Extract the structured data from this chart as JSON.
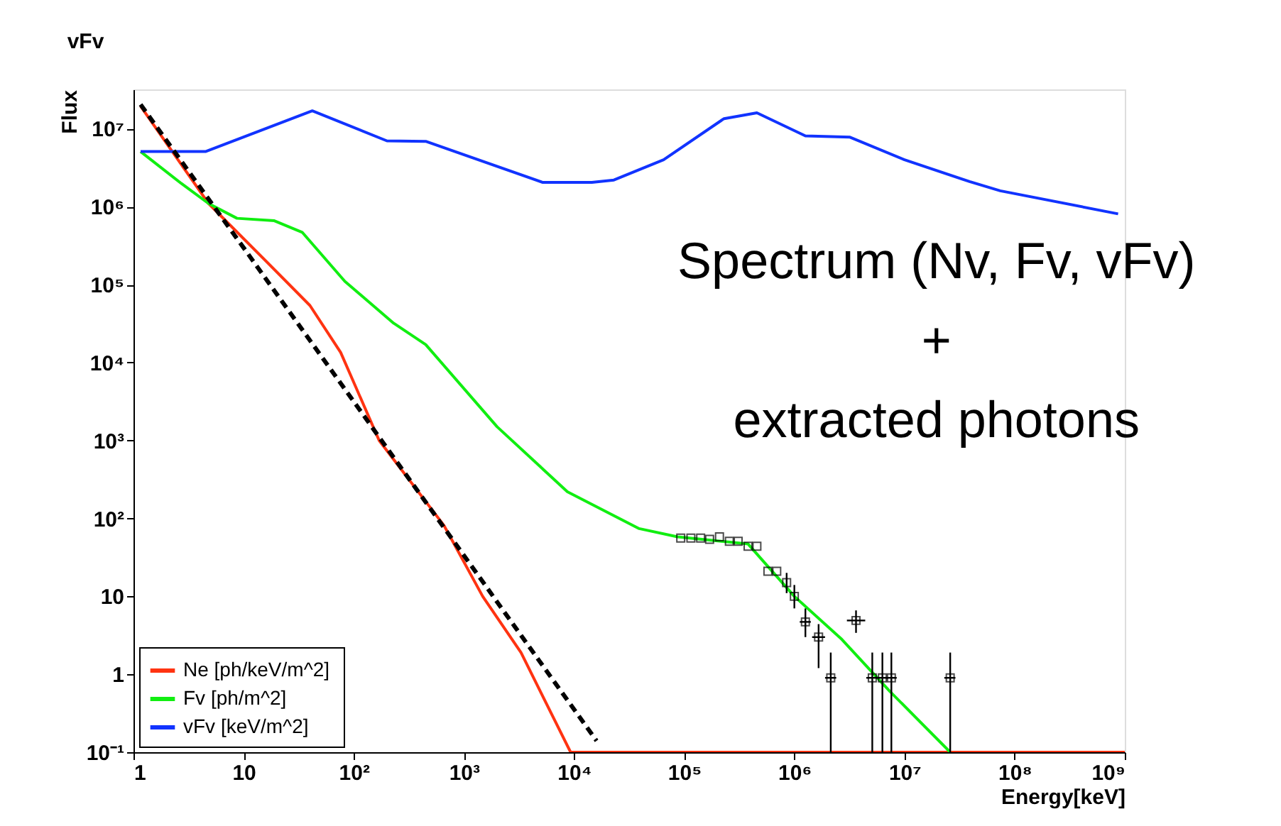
{
  "chart_data": {
    "type": "line",
    "title": "vFv",
    "xlabel": "Energy[keV]",
    "ylabel": "Flux",
    "log": "xy",
    "xlim": [
      1,
      1000000000
    ],
    "ylim": [
      0.1,
      32000000
    ],
    "xticks": [
      1,
      10,
      {
        "value": 100,
        "label": "10²"
      },
      {
        "value": 1000,
        "label": "10³"
      },
      {
        "value": 10000,
        "label": "10⁴"
      },
      {
        "value": 100000,
        "label": "10⁵"
      },
      {
        "value": 1000000,
        "label": "10⁶"
      },
      {
        "value": 10000000,
        "label": "10⁷"
      },
      {
        "value": 100000000,
        "label": "10⁸"
      },
      {
        "value": 1000000000,
        "label": "10⁹"
      }
    ],
    "yticks": [
      {
        "value": 0.1,
        "label": "10⁻¹"
      },
      1,
      10,
      {
        "value": 100,
        "label": "10²"
      },
      {
        "value": 1000,
        "label": "10³"
      },
      {
        "value": 10000,
        "label": "10⁴"
      },
      {
        "value": 100000,
        "label": "10⁵"
      },
      {
        "value": 1000000,
        "label": "10⁶"
      },
      {
        "value": 10000000,
        "label": "10⁷"
      }
    ],
    "grid": false,
    "legend": "bottom left",
    "annotations": [
      "Spectrum (Nv, Fv, vFv)\n+\nextracted photons"
    ],
    "series": [
      {
        "name": "Ne  [ph/keV/m^2]",
        "color": "#ff3311",
        "line_style": "solid",
        "x": [
          1.16,
          4.8,
          16,
          40,
          76,
          170,
          660,
          1480,
          3300,
          9300,
          1000000000
        ],
        "values": [
          19500000,
          1100000,
          200000,
          54000,
          13500,
          1000,
          81,
          10,
          1.9,
          0.1,
          0.1
        ]
      },
      {
        "name": "Fv  [ph/m^2]",
        "color": "#11ee11",
        "line_style": "solid",
        "x": [
          1.16,
          2.7,
          4.8,
          8.7,
          19,
          34,
          83,
          230,
          450,
          2000,
          8700,
          39000,
          87000,
          380000,
          1000000,
          2700000,
          7400000,
          26000000
        ],
        "values": [
          5100000,
          2000000,
          1100000,
          710000,
          660000,
          470000,
          110000,
          32000,
          17000,
          1500,
          220,
          74,
          58,
          47,
          10,
          2.8,
          0.6,
          0.1
        ]
      },
      {
        "name": "vFv [keV/m^2]",
        "color": "#1133ff",
        "line_style": "solid",
        "x": [
          1.16,
          4.5,
          42,
          200,
          450,
          5200,
          14500,
          23000,
          65000,
          230000,
          457000,
          1260000,
          3200000,
          10000000,
          39000000,
          74000000,
          870000000
        ],
        "values": [
          5100000,
          5100000,
          17000000,
          7000000,
          6900000,
          2050000,
          2050000,
          2200000,
          4000000,
          13500000,
          16000000,
          8100000,
          7800000,
          4000000,
          2100000,
          1600000,
          810000
        ]
      },
      {
        "color": "#000000",
        "line_style": "dashed",
        "x": [
          1.16,
          10.5,
          16000
        ],
        "values": [
          20500000,
          270000,
          0.14
        ]
      },
      {
        "type": "scatter",
        "marker": "square",
        "color": "#000000",
        "x": [
          93000,
          115000,
          141000,
          170000,
          209000,
          257000,
          309000,
          380000,
          457000,
          575000,
          692000,
          851000,
          1000000,
          1260000,
          1660000,
          2140000,
          3630000,
          5100000,
          6300000,
          7600000,
          26000000
        ],
        "values": [
          56,
          56,
          56,
          54,
          58,
          51,
          51,
          44,
          44,
          21,
          21,
          15,
          10,
          4.7,
          3.0,
          0.9,
          4.9,
          0.9,
          0.9,
          0.9,
          0.9
        ],
        "errors": [
          null,
          null,
          null,
          null,
          null,
          null,
          null,
          null,
          null,
          null,
          null,
          [
            11,
            20
          ],
          [
            7,
            14
          ],
          [
            3,
            7
          ],
          [
            1.2,
            4.4
          ],
          [
            0.1,
            1.9
          ],
          [
            3.4,
            6.6
          ],
          [
            0.1,
            1.9
          ],
          [
            0.1,
            1.9
          ],
          [
            0.1,
            1.9
          ],
          [
            0.1,
            1.9
          ]
        ],
        "xerrors": [
          null,
          null,
          null,
          null,
          null,
          null,
          null,
          null,
          null,
          null,
          null,
          null,
          null,
          [
            1120000,
            1410000
          ],
          [
            1450000,
            1900000
          ],
          [
            1900000,
            2400000
          ],
          [
            3000000,
            4400000
          ],
          [
            4500000,
            5700000
          ],
          [
            5600000,
            7100000
          ],
          [
            6800000,
            8500000
          ],
          [
            23000000,
            29000000
          ]
        ]
      }
    ]
  }
}
